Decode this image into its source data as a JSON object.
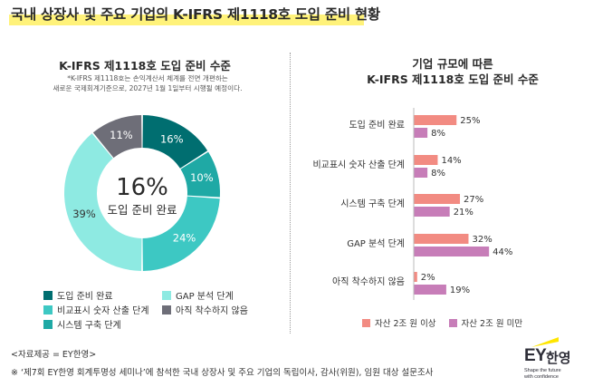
{
  "page_title": "국내 상장사 및 주요 기업의 K-IFRS 제1118호 도입 준비 현황",
  "colors": {
    "donut": [
      "#006e70",
      "#1fa9a5",
      "#3dc8c3",
      "#8eeae2",
      "#6e6e78"
    ],
    "bar_large": "#f28b82",
    "bar_small": "#c77db8",
    "highlight": "#fff27a"
  },
  "left_chart": {
    "title": "K-IFRS 제1118호 도입 준비 수준",
    "note_line1": "*K-IFRS 제1118호는 손익계산서 체계를 전면 개편하는",
    "note_line2": "새로운 국제회계기준으로, 2027년 1월 1일부터 시행될 예정이다.",
    "center_value": "16%",
    "center_label": "도입 준비 완료",
    "legend": [
      "도입 준비 완료",
      "GAP 분석 단계",
      "비교표시 숫자 산출 단계",
      "아직 착수하지 않음",
      "시스템 구축 단계"
    ]
  },
  "right_chart": {
    "title_line1": "기업 규모에 따른",
    "title_line2": "K-IFRS 제1118호 도입 준비 수준",
    "legend": [
      "자산 2조 원 이상",
      "자산 2조 원 미만"
    ]
  },
  "chart_data": [
    {
      "type": "pie",
      "variant": "donut",
      "title": "K-IFRS 제1118호 도입 준비 수준",
      "categories": [
        "도입 준비 완료",
        "GAP 분석 단계",
        "시스템 구축 단계",
        "비교표시 숫자 산출 단계",
        "아직 착수하지 않음"
      ],
      "values": [
        16,
        10,
        24,
        39,
        11
      ],
      "labels": [
        "16%",
        "10%",
        "24%",
        "39%",
        "11%"
      ],
      "unit": "%"
    },
    {
      "type": "bar",
      "orientation": "horizontal",
      "title": "기업 규모에 따른 K-IFRS 제1118호 도입 준비 수준",
      "categories": [
        "도입 준비 완료",
        "비교표시 숫자 산출 단계",
        "시스템 구축 단계",
        "GAP 분석 단계",
        "아직 착수하지 않음"
      ],
      "series": [
        {
          "name": "자산 2조 원 이상",
          "values": [
            25,
            14,
            27,
            32,
            2
          ],
          "labels": [
            "25%",
            "14%",
            "27%",
            "32%",
            "2%"
          ]
        },
        {
          "name": "자산 2조 원 미만",
          "values": [
            8,
            8,
            21,
            44,
            19
          ],
          "labels": [
            "8%",
            "8%",
            "21%",
            "44%",
            "19%"
          ]
        }
      ],
      "unit": "%",
      "legend_position": "bottom"
    }
  ],
  "source": "<자료제공 = EY한영>",
  "footnote": "※ ‘제7회 EY한영 회계투명성 세미나’에 참석한 국내 상장사 및 주요 기업의 독립이사, 감사(위원), 임원 대상 설문조사",
  "logo": {
    "ey": "EY",
    "korean": "한영",
    "tagline1": "Shape the future",
    "tagline2": "with confidence"
  }
}
